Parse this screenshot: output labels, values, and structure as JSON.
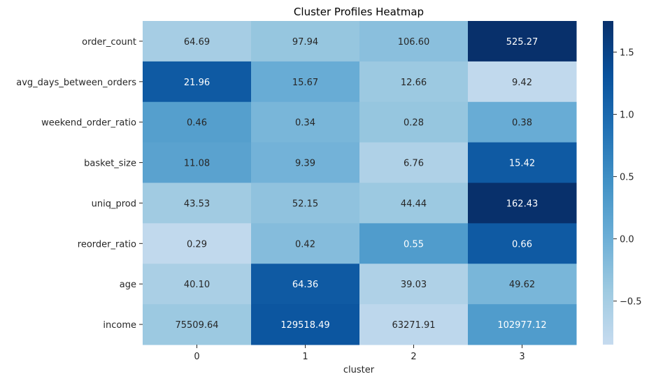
{
  "chart_data": {
    "type": "heatmap",
    "title": "Cluster Profiles Heatmap",
    "xlabel": "cluster",
    "ylabel": "",
    "x_categories": [
      "0",
      "1",
      "2",
      "3"
    ],
    "y_categories": [
      "order_count",
      "avg_days_between_orders",
      "weekend_order_ratio",
      "basket_size",
      "uniq_prod",
      "reorder_ratio",
      "age",
      "income"
    ],
    "annotations": [
      [
        "64.69",
        "97.94",
        "106.60",
        "525.27"
      ],
      [
        "21.96",
        "15.67",
        "12.66",
        "9.42"
      ],
      [
        "0.46",
        "0.34",
        "0.28",
        "0.38"
      ],
      [
        "11.08",
        "9.39",
        "6.76",
        "15.42"
      ],
      [
        "43.53",
        "52.15",
        "44.44",
        "162.43"
      ],
      [
        "0.29",
        "0.42",
        "0.55",
        "0.66"
      ],
      [
        "40.10",
        "64.36",
        "39.03",
        "49.62"
      ],
      [
        "75509.64",
        "129518.49",
        "63271.91",
        "102977.12"
      ]
    ],
    "color_values": [
      [
        -0.5,
        -0.35,
        -0.25,
        1.75
      ],
      [
        1.2,
        0.05,
        -0.4,
        -0.8
      ],
      [
        0.25,
        -0.1,
        -0.35,
        0.05
      ],
      [
        0.2,
        -0.05,
        -0.6,
        1.2
      ],
      [
        -0.45,
        -0.3,
        -0.4,
        1.75
      ],
      [
        -0.8,
        -0.2,
        0.3,
        1.2
      ],
      [
        -0.55,
        1.2,
        -0.6,
        -0.1
      ],
      [
        -0.4,
        1.25,
        -0.75,
        0.3
      ]
    ],
    "colorbar": {
      "vmin": -0.85,
      "vmax": 1.75,
      "ticks": [
        -0.5,
        0.0,
        0.5,
        1.0,
        1.5
      ],
      "tick_labels": [
        "−0.5",
        "0.0",
        "0.5",
        "1.0",
        "1.5"
      ]
    },
    "colormap": "Blues",
    "colormap_stops": [
      "#c6dbef",
      "#9ecae1",
      "#6baed6",
      "#4292c6",
      "#2171b5",
      "#08519c",
      "#08306b"
    ],
    "annotation_dark_color": "#262626",
    "annotation_light_color": "#ffffff"
  }
}
